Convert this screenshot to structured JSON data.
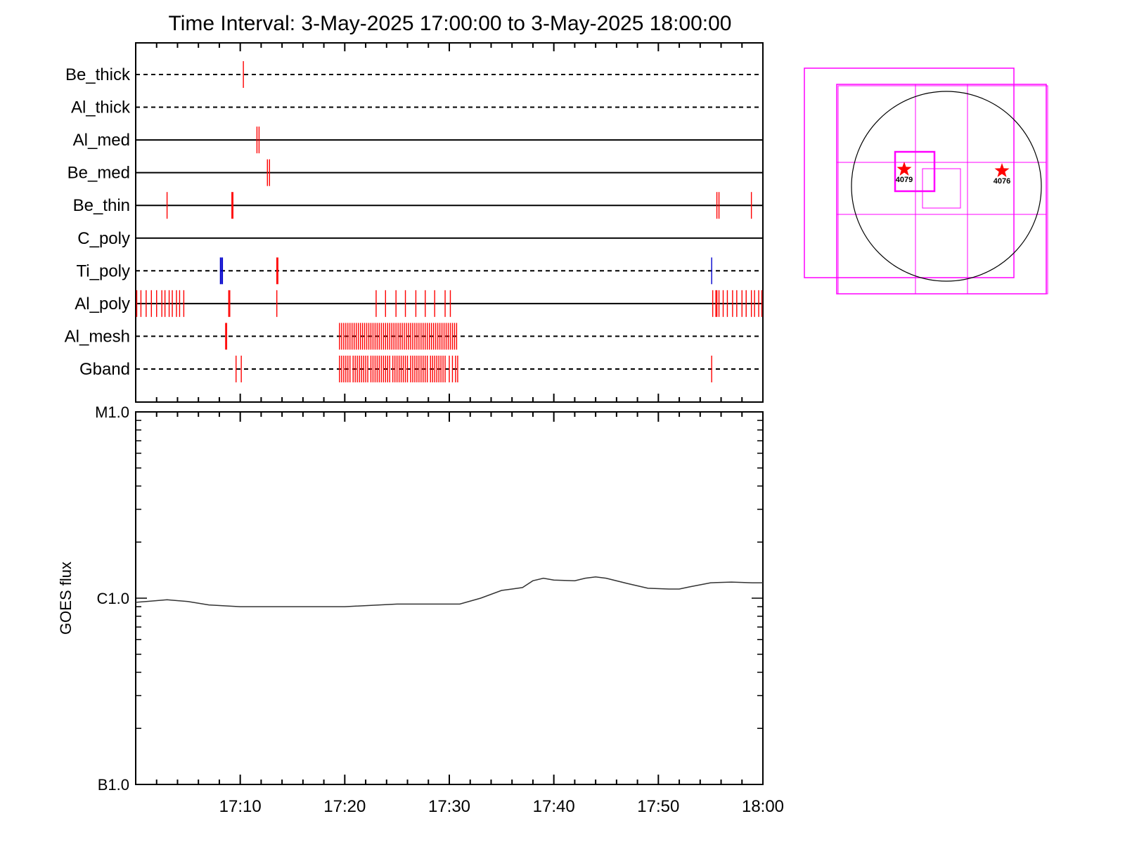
{
  "title": "Time Interval:  3-May-2025 17:00:00 to  3-May-2025 18:00:00",
  "colors": {
    "axis": "#000000",
    "red": "#ff0000",
    "blue": "#0000cc",
    "magenta": "#ff00ff",
    "goes": "#333333"
  },
  "chart_data": [
    {
      "type": "raster",
      "x_range_minutes": [
        0,
        60
      ],
      "x_tick_labels": [
        "17:10",
        "17:20",
        "17:30",
        "17:40",
        "17:50",
        "18:00"
      ],
      "channels": [
        {
          "name": "Be_thick",
          "line": "dashed",
          "red": [
            10.3
          ],
          "blue": []
        },
        {
          "name": "Al_thick",
          "line": "dashed",
          "red": [],
          "blue": []
        },
        {
          "name": "Al_med",
          "line": "solid",
          "red": [
            11.6,
            11.8
          ],
          "blue": []
        },
        {
          "name": "Be_med",
          "line": "solid",
          "red": [
            12.6,
            12.8
          ],
          "blue": []
        },
        {
          "name": "Be_thin",
          "line": "solid",
          "red": [
            3.0,
            9.2,
            9.3,
            55.6,
            55.8,
            58.9
          ],
          "blue": []
        },
        {
          "name": "C_poly",
          "line": "solid",
          "red": [],
          "blue": []
        },
        {
          "name": "Ti_poly",
          "line": "dashed",
          "red": [
            13.5,
            13.6
          ],
          "blue": [
            8.1,
            8.2,
            8.3,
            55.1
          ]
        },
        {
          "name": "Al_poly",
          "line": "solid",
          "red": [
            0.1,
            0.5,
            1.0,
            1.5,
            2.0,
            2.5,
            2.8,
            3.2,
            3.5,
            3.9,
            4.2,
            4.6,
            8.9,
            9.0,
            13.5,
            23.0,
            23.9,
            24.9,
            25.8,
            26.8,
            27.7,
            28.6,
            29.6,
            30.1,
            55.2,
            55.5,
            55.6,
            55.8,
            56.2,
            56.6,
            57.1,
            57.5,
            58.0,
            58.4,
            58.9,
            59.2,
            59.6,
            59.9
          ],
          "blue": []
        },
        {
          "name": "Al_mesh",
          "line": "dashed",
          "red": [
            8.6,
            8.7,
            19.5,
            19.7,
            19.9,
            20.1,
            20.3,
            20.5,
            20.7,
            20.9,
            21.1,
            21.3,
            21.5,
            21.7,
            21.9,
            22.1,
            22.3,
            22.5,
            22.7,
            22.9,
            23.1,
            23.3,
            23.5,
            23.7,
            23.9,
            24.1,
            24.3,
            24.5,
            24.7,
            24.9,
            25.1,
            25.3,
            25.5,
            25.7,
            25.9,
            26.1,
            26.3,
            26.5,
            26.7,
            26.9,
            27.1,
            27.3,
            27.5,
            27.7,
            27.9,
            28.1,
            28.3,
            28.5,
            28.7,
            28.9,
            29.1,
            29.3,
            29.5,
            29.7,
            29.9,
            30.1,
            30.3,
            30.5,
            30.7
          ],
          "blue": []
        },
        {
          "name": "Gband",
          "line": "dashed",
          "red": [
            9.6,
            10.1,
            19.5,
            19.7,
            19.9,
            20.1,
            20.3,
            20.5,
            20.8,
            21.0,
            21.2,
            21.4,
            21.6,
            21.8,
            22.0,
            22.2,
            22.5,
            22.7,
            22.9,
            23.1,
            23.3,
            23.5,
            23.7,
            23.9,
            24.1,
            24.3,
            24.6,
            24.8,
            25.0,
            25.2,
            25.4,
            25.6,
            25.8,
            26.0,
            26.3,
            26.5,
            26.7,
            26.9,
            27.1,
            27.3,
            27.5,
            27.7,
            27.9,
            28.2,
            28.4,
            28.6,
            28.8,
            29.0,
            29.2,
            29.4,
            29.6,
            30.0,
            30.3,
            30.6,
            30.8,
            55.1
          ],
          "blue": []
        }
      ]
    },
    {
      "type": "line",
      "ylabel": "GOES flux",
      "yscale": "log",
      "y_tick_labels": [
        "M1.0",
        "C1.0",
        "B1.0"
      ],
      "ylim_log10": [
        -7,
        -5
      ],
      "x_range_minutes": [
        0,
        60
      ],
      "x_tick_labels": [
        "17:10",
        "17:20",
        "17:30",
        "17:40",
        "17:50",
        "18:00"
      ],
      "series": [
        {
          "x": [
            0,
            1,
            3,
            5,
            7,
            10,
            15,
            20,
            25,
            28,
            30,
            31,
            33,
            35,
            36,
            37,
            38,
            39,
            40,
            42,
            43,
            44,
            45,
            47,
            49,
            51,
            52,
            53,
            55,
            57,
            59,
            60
          ],
          "y": [
            9.5e-07,
            9.6e-07,
            9.8e-07,
            9.6e-07,
            9.2e-07,
            9e-07,
            9e-07,
            9e-07,
            9.3e-07,
            9.3e-07,
            9.3e-07,
            9.3e-07,
            1e-06,
            1.1e-06,
            1.12e-06,
            1.14e-06,
            1.24e-06,
            1.28e-06,
            1.25e-06,
            1.24e-06,
            1.28e-06,
            1.3e-06,
            1.28e-06,
            1.2e-06,
            1.13e-06,
            1.12e-06,
            1.12e-06,
            1.15e-06,
            1.21e-06,
            1.22e-06,
            1.21e-06,
            1.21e-06
          ]
        }
      ]
    },
    {
      "type": "map",
      "active_regions": [
        {
          "label": "4079"
        },
        {
          "label": "4076"
        }
      ]
    }
  ]
}
